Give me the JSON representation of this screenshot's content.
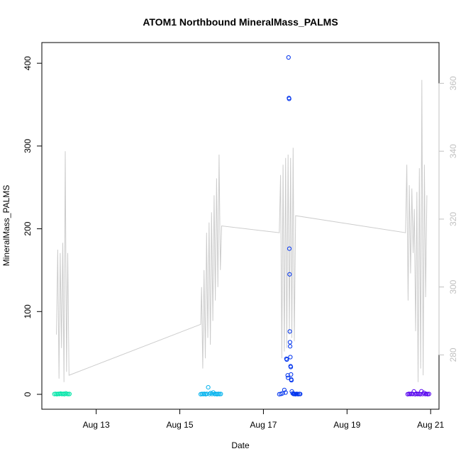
{
  "chart_data": {
    "type": "scatter",
    "title": "ATOM1 Northbound MineralMass_PALMS",
    "xlabel": "Date",
    "ylabel": "MineralMass_PALMS",
    "x_ticks": [
      "Aug 13",
      "Aug 15",
      "Aug 17",
      "Aug 19",
      "Aug 21"
    ],
    "x_tick_days": [
      13,
      15,
      17,
      19,
      21
    ],
    "xlim_days": [
      11.7,
      21.2
    ],
    "ylim_left": [
      -18,
      425
    ],
    "y_ticks_left": [
      0,
      100,
      200,
      300,
      400
    ],
    "ylim_right": [
      264,
      372
    ],
    "y_ticks_right": [
      280,
      300,
      320,
      340,
      360
    ],
    "grid": false,
    "colors": {
      "line": "#cccccc",
      "right_axis": "#c0c0c0",
      "group1": "#00e5a8",
      "group2": "#00b2ee",
      "group3": "#0033ee",
      "group4": "#5500ee"
    },
    "line_series": {
      "name": "",
      "axis": "right",
      "points": [
        [
          12.05,
          286
        ],
        [
          12.08,
          311
        ],
        [
          12.11,
          273
        ],
        [
          12.14,
          310
        ],
        [
          12.17,
          282
        ],
        [
          12.2,
          313
        ],
        [
          12.23,
          272
        ],
        [
          12.26,
          340
        ],
        [
          12.29,
          275
        ],
        [
          12.32,
          310
        ],
        [
          12.35,
          274
        ],
        [
          15.5,
          289
        ],
        [
          15.52,
          300
        ],
        [
          15.55,
          276
        ],
        [
          15.58,
          305
        ],
        [
          15.61,
          279
        ],
        [
          15.64,
          316
        ],
        [
          15.67,
          285
        ],
        [
          15.7,
          319
        ],
        [
          15.73,
          283
        ],
        [
          15.76,
          322
        ],
        [
          15.79,
          290
        ],
        [
          15.82,
          327
        ],
        [
          15.85,
          296
        ],
        [
          15.88,
          332
        ],
        [
          15.91,
          300
        ],
        [
          15.94,
          339
        ],
        [
          15.97,
          305
        ],
        [
          16.0,
          318
        ],
        [
          17.38,
          316
        ],
        [
          17.41,
          333
        ],
        [
          17.44,
          279
        ],
        [
          17.47,
          336
        ],
        [
          17.5,
          281
        ],
        [
          17.53,
          338
        ],
        [
          17.56,
          282
        ],
        [
          17.59,
          339
        ],
        [
          17.62,
          286
        ],
        [
          17.65,
          338
        ],
        [
          17.68,
          285
        ],
        [
          17.71,
          341
        ],
        [
          17.74,
          284
        ],
        [
          17.77,
          321
        ],
        [
          20.4,
          316
        ],
        [
          20.43,
          336
        ],
        [
          20.46,
          296
        ],
        [
          20.49,
          330
        ],
        [
          20.52,
          304
        ],
        [
          20.55,
          329
        ],
        [
          20.58,
          310
        ],
        [
          20.61,
          323
        ],
        [
          20.64,
          287
        ],
        [
          20.67,
          328
        ],
        [
          20.7,
          272
        ],
        [
          20.73,
          335
        ],
        [
          20.76,
          276
        ],
        [
          20.79,
          361
        ],
        [
          20.82,
          274
        ],
        [
          20.85,
          336
        ],
        [
          20.88,
          297
        ],
        [
          20.91,
          327
        ]
      ]
    },
    "scatter_groups": [
      {
        "name": "",
        "color": "#00e5a8",
        "points": [
          [
            12.0,
            0.3
          ],
          [
            12.03,
            0.5
          ],
          [
            12.06,
            0.2
          ],
          [
            12.09,
            0.6
          ],
          [
            12.12,
            0.4
          ],
          [
            12.15,
            0.9
          ],
          [
            12.18,
            0.3
          ],
          [
            12.21,
            0.7
          ],
          [
            12.24,
            0.2
          ],
          [
            12.27,
            1.2
          ],
          [
            12.3,
            0.5
          ],
          [
            12.33,
            0.3
          ],
          [
            12.36,
            0.4
          ]
        ]
      },
      {
        "name": "",
        "color": "#00b2ee",
        "points": [
          [
            15.5,
            0.2
          ],
          [
            15.53,
            0.4
          ],
          [
            15.56,
            0.3
          ],
          [
            15.59,
            0.5
          ],
          [
            15.62,
            0.2
          ],
          [
            15.65,
            0.6
          ],
          [
            15.68,
            8.5
          ],
          [
            15.71,
            0.3
          ],
          [
            15.74,
            1.5
          ],
          [
            15.77,
            0.4
          ],
          [
            15.8,
            2.2
          ],
          [
            15.83,
            0.3
          ],
          [
            15.86,
            0.6
          ],
          [
            15.89,
            0.2
          ],
          [
            15.92,
            0.5
          ],
          [
            15.95,
            0.3
          ],
          [
            15.98,
            0.4
          ]
        ]
      },
      {
        "name": "",
        "color": "#0033ee",
        "points": [
          [
            17.38,
            0.2
          ],
          [
            17.42,
            0.5
          ],
          [
            17.46,
            1.2
          ],
          [
            17.5,
            5.3
          ],
          [
            17.53,
            2.1
          ],
          [
            17.55,
            43
          ],
          [
            17.56,
            42
          ],
          [
            17.58,
            23
          ],
          [
            17.59,
            20
          ],
          [
            17.6,
            407
          ],
          [
            17.61,
            358
          ],
          [
            17.615,
            357
          ],
          [
            17.62,
            176
          ],
          [
            17.625,
            145
          ],
          [
            17.63,
            76
          ],
          [
            17.635,
            63
          ],
          [
            17.64,
            58
          ],
          [
            17.645,
            45
          ],
          [
            17.65,
            34
          ],
          [
            17.655,
            33
          ],
          [
            17.66,
            24
          ],
          [
            17.665,
            18
          ],
          [
            17.67,
            17
          ],
          [
            17.68,
            3.5
          ],
          [
            17.7,
            1.1
          ],
          [
            17.72,
            0.4
          ],
          [
            17.74,
            0.6
          ],
          [
            17.76,
            0.2
          ],
          [
            17.78,
            0.3
          ],
          [
            17.8,
            0.5
          ],
          [
            17.83,
            0.2
          ],
          [
            17.86,
            0.4
          ],
          [
            17.88,
            0.3
          ]
        ]
      },
      {
        "name": "",
        "color": "#5500ee",
        "points": [
          [
            20.45,
            0.2
          ],
          [
            20.48,
            0.5
          ],
          [
            20.51,
            0.3
          ],
          [
            20.54,
            0.6
          ],
          [
            20.57,
            0.4
          ],
          [
            20.6,
            3.5
          ],
          [
            20.63,
            0.2
          ],
          [
            20.66,
            0.8
          ],
          [
            20.69,
            0.3
          ],
          [
            20.72,
            0.5
          ],
          [
            20.75,
            0.2
          ],
          [
            20.78,
            3.7
          ],
          [
            20.81,
            0.4
          ],
          [
            20.84,
            1.8
          ],
          [
            20.87,
            0.3
          ],
          [
            20.9,
            0.5
          ],
          [
            20.93,
            0.2
          ],
          [
            20.96,
            0.4
          ]
        ]
      }
    ]
  }
}
